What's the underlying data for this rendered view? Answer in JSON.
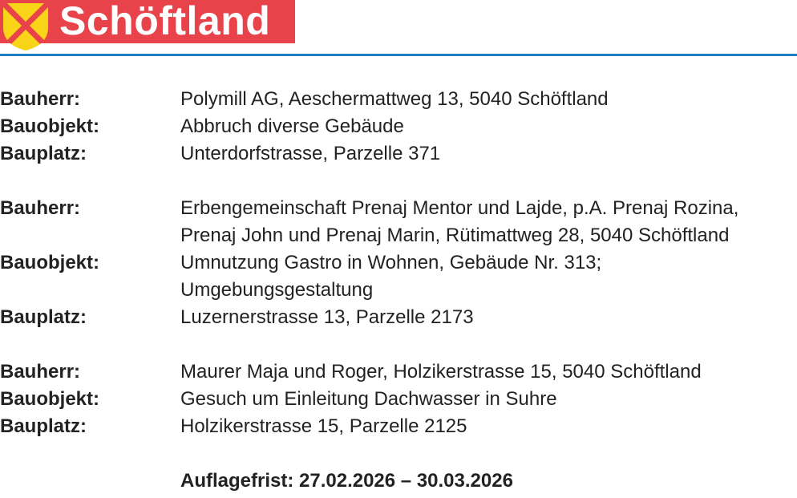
{
  "header": {
    "brand": "Schöftland",
    "logo": "coat-of-arms-shield",
    "colors": {
      "banner": "#e8424b",
      "shield": "#f7d417",
      "rule": "#1f7cc0"
    }
  },
  "entries": [
    {
      "rows": [
        {
          "label": "Bauherr:",
          "lines": [
            "Polymill AG, Aeschermattweg 13, 5040 Schöftland"
          ]
        },
        {
          "label": "Bauobjekt:",
          "lines": [
            "Abbruch diverse Gebäude"
          ]
        },
        {
          "label": "Bauplatz:",
          "lines": [
            "Unterdorfstrasse, Parzelle 371"
          ]
        }
      ]
    },
    {
      "rows": [
        {
          "label": "Bauherr:",
          "lines": [
            "Erbengemeinschaft Prenaj Mentor und Lajde, p.A. Prenaj Rozina,",
            "Prenaj John und Prenaj Marin, Rütimattweg 28, 5040 Schöftland"
          ]
        },
        {
          "label": "Bauobjekt:",
          "lines": [
            "Umnutzung Gastro in Wohnen, Gebäude Nr. 313;",
            "Umgebungsgestaltung"
          ]
        },
        {
          "label": "Bauplatz:",
          "lines": [
            "Luzernerstrasse 13, Parzelle 2173"
          ]
        }
      ]
    },
    {
      "rows": [
        {
          "label": "Bauherr:",
          "lines": [
            "Maurer Maja und Roger, Holzikerstrasse 15, 5040 Schöftland"
          ]
        },
        {
          "label": "Bauobjekt:",
          "lines": [
            "Gesuch um Einleitung Dachwasser in Suhre"
          ]
        },
        {
          "label": "Bauplatz:",
          "lines": [
            "Holzikerstrasse 15, Parzelle 2125"
          ]
        }
      ]
    }
  ],
  "deadline": "Auflagefrist: 27.02.2026 – 30.03.2026"
}
